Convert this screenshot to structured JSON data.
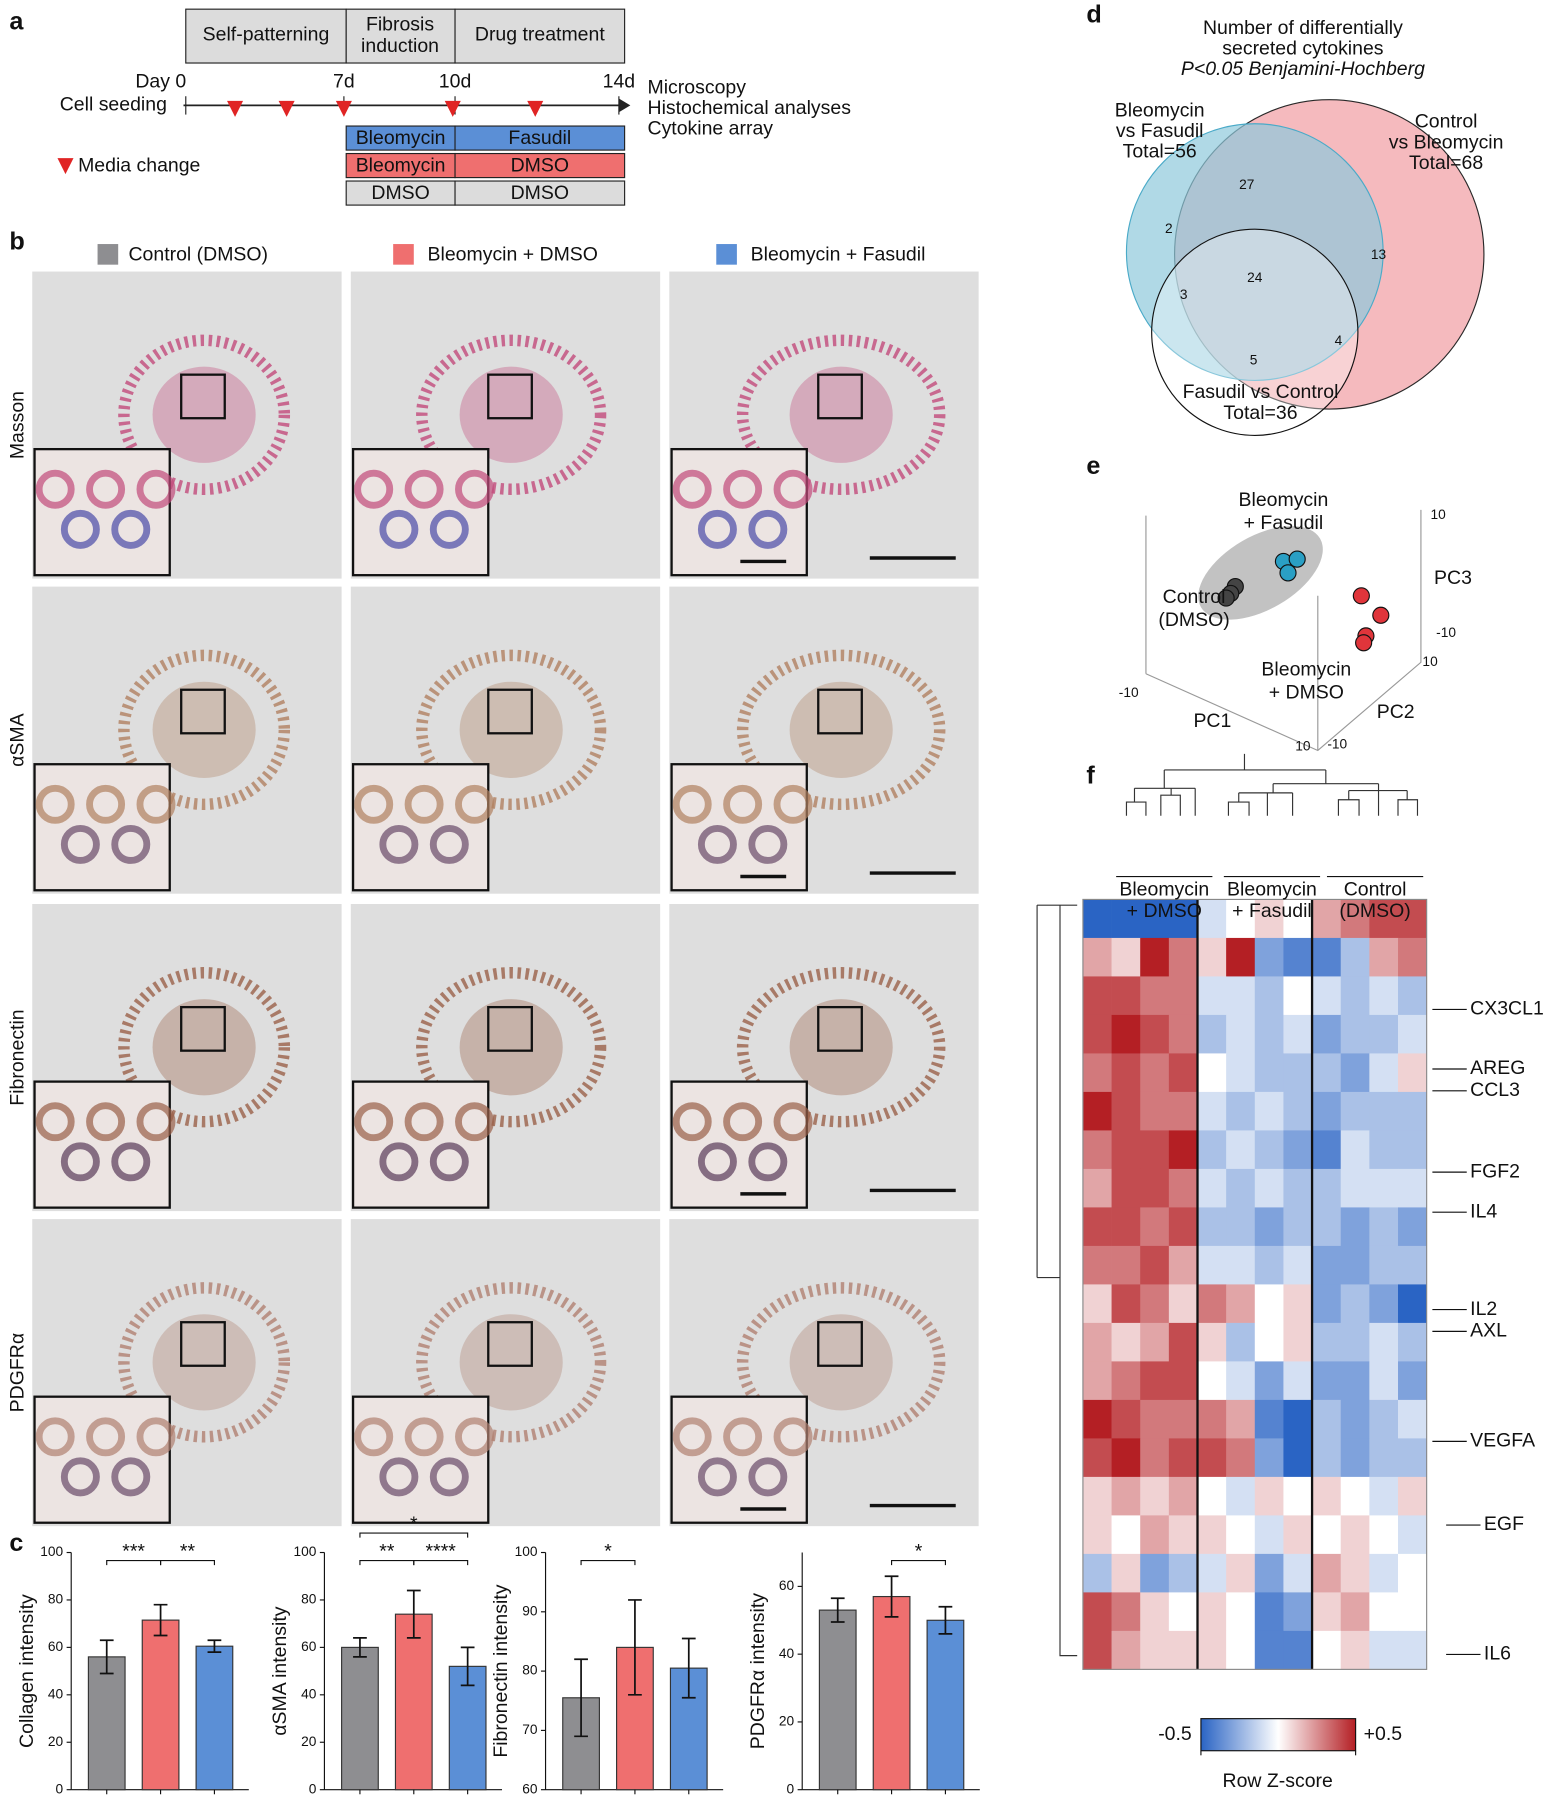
{
  "panels": [
    "a",
    "b",
    "c",
    "d",
    "e",
    "f"
  ],
  "panel_a": {
    "phases": [
      "Self-patterning",
      "Fibrosis",
      "induction",
      "Drug treatment"
    ],
    "day_labels": [
      "Day 0",
      "7d",
      "10d",
      "14d"
    ],
    "cell_seeding": "Cell seeding",
    "outputs": [
      "Microscopy",
      "Histochemical analyses",
      "Cytokine array"
    ],
    "legend": "Media change",
    "rows": [
      [
        "Bleomycin",
        "Fasudil"
      ],
      [
        "Bleomycin",
        "DMSO"
      ],
      [
        "DMSO",
        "DMSO"
      ]
    ]
  },
  "panel_b": {
    "groups": [
      {
        "name": "Control (DMSO)",
        "color": "#8e8e91"
      },
      {
        "name": "Bleomycin + DMSO",
        "color": "#ef6f6f"
      },
      {
        "name": "Bleomycin + Fasudil",
        "color": "#5b8fd6"
      }
    ],
    "stains": [
      "Masson",
      "αSMA",
      "Fibronectin",
      "PDGFRα"
    ]
  },
  "panel_d": {
    "title": [
      "Number of differentially",
      "secreted cytokines",
      "P<0.05 Benjamini-Hochberg"
    ],
    "sets": [
      {
        "lines": [
          "Bleomycin",
          "vs Fasudil"
        ],
        "total": "Total=56",
        "color": "#2a9fc4"
      },
      {
        "lines": [
          "Control",
          "vs Bleomycin"
        ],
        "total": "Total=68",
        "color": "#e0353b"
      },
      {
        "lines": [
          "Fasudil vs Control"
        ],
        "total": "Total=36",
        "color": "#000000"
      }
    ],
    "regions": [
      "27",
      "2",
      "13",
      "24",
      "3",
      "4",
      "5"
    ]
  },
  "panel_e": {
    "groups": [
      {
        "lines": [
          "Bleomycin",
          "+ Fasudil"
        ],
        "color": "#2a9fc4"
      },
      {
        "lines": [
          "Control",
          "(DMSO)"
        ],
        "color": "#222222"
      },
      {
        "lines": [
          "Bleomycin",
          "+ DMSO"
        ],
        "color": "#e0353b"
      }
    ],
    "axes": [
      "PC1",
      "PC2",
      "PC3"
    ],
    "ticks": [
      "10",
      "-10",
      "10",
      "-10",
      "-10",
      "10"
    ]
  },
  "chart_data": [
    {
      "type": "bar",
      "ylabel": "Collagen intensity",
      "categories": [
        null,
        null,
        null
      ],
      "values": [
        56,
        71.5,
        60.5
      ],
      "errors": [
        7,
        6.5,
        2.5
      ],
      "colors": [
        "#8e8e91",
        "#ef6f6f",
        "#5b8fd6"
      ],
      "ylim": [
        0,
        100
      ],
      "yticks": [
        0,
        20,
        40,
        60,
        80,
        100
      ],
      "significance": [
        {
          "label": "***",
          "from": 0,
          "to": 1
        },
        {
          "label": "**",
          "from": 1,
          "to": 2
        }
      ]
    },
    {
      "type": "bar",
      "ylabel": "αSMA intensity",
      "categories": [
        null,
        null,
        null
      ],
      "values": [
        60,
        74,
        52
      ],
      "errors": [
        4,
        10,
        8
      ],
      "colors": [
        "#8e8e91",
        "#ef6f6f",
        "#5b8fd6"
      ],
      "ylim": [
        0,
        100
      ],
      "yticks": [
        0,
        20,
        40,
        60,
        80,
        100
      ],
      "significance": [
        {
          "label": "**",
          "from": 0,
          "to": 1
        },
        {
          "label": "****",
          "from": 1,
          "to": 2
        },
        {
          "label": "*",
          "from": 0,
          "to": 2
        }
      ]
    },
    {
      "type": "bar",
      "ylabel": "Fibronectin intensity",
      "categories": [
        null,
        null,
        null
      ],
      "values": [
        75.5,
        84,
        80.5
      ],
      "errors": [
        6.5,
        8,
        5
      ],
      "colors": [
        "#8e8e91",
        "#ef6f6f",
        "#5b8fd6"
      ],
      "ylim": [
        60,
        100
      ],
      "yticks": [
        60,
        70,
        80,
        90,
        100
      ],
      "significance": [
        {
          "label": "*",
          "from": 0,
          "to": 1
        }
      ]
    },
    {
      "type": "bar",
      "ylabel": "PDGFRα intensity",
      "categories": [
        null,
        null,
        null
      ],
      "values": [
        53,
        57,
        50
      ],
      "errors": [
        3.5,
        6,
        4
      ],
      "colors": [
        "#8e8e91",
        "#ef6f6f",
        "#5b8fd6"
      ],
      "ylim": [
        0,
        70
      ],
      "yticks": [
        0,
        20,
        40,
        60
      ],
      "significance": [
        {
          "label": "*",
          "from": 1,
          "to": 2
        }
      ]
    },
    {
      "type": "heatmap",
      "column_groups": [
        [
          "Bleomycin",
          "+ DMSO"
        ],
        [
          "Bleomycin",
          "+ Fasudil"
        ],
        [
          "Control",
          "(DMSO)"
        ]
      ],
      "row_labels": [
        "CX3CL1",
        "AREG",
        "CCL3",
        "FGF2",
        "IL4",
        "IL2",
        "AXL",
        "VEGFA",
        "EGF",
        "IL6"
      ],
      "colorbar_label": "Row Z-score",
      "zticks": [
        -0.5,
        {
          "value": 0.5,
          "label": "+0.5"
        }
      ],
      "values": [
        [
          -0.5,
          -0.5,
          -0.5,
          -0.5,
          -0.1,
          0,
          0.1,
          0,
          0.2,
          0.3,
          0.4,
          0.4
        ],
        [
          0.2,
          0.1,
          0.5,
          0.3,
          0.1,
          0.5,
          -0.3,
          -0.4,
          -0.4,
          -0.2,
          0.2,
          0.3
        ],
        [
          0.4,
          0.4,
          0.3,
          0.3,
          -0.1,
          -0.1,
          -0.2,
          0,
          -0.1,
          -0.2,
          -0.1,
          -0.2
        ],
        [
          0.4,
          0.5,
          0.4,
          0.3,
          -0.2,
          -0.1,
          -0.2,
          -0.1,
          -0.3,
          -0.2,
          -0.2,
          -0.1
        ],
        [
          0.3,
          0.4,
          0.3,
          0.4,
          0,
          -0.1,
          -0.2,
          -0.2,
          -0.2,
          -0.3,
          -0.1,
          0.1
        ],
        [
          0.5,
          0.4,
          0.3,
          0.3,
          -0.1,
          -0.2,
          -0.1,
          -0.2,
          -0.3,
          -0.2,
          -0.2,
          -0.2
        ],
        [
          0.3,
          0.4,
          0.4,
          0.5,
          -0.2,
          -0.1,
          -0.2,
          -0.3,
          -0.4,
          -0.1,
          -0.2,
          -0.2
        ],
        [
          0.2,
          0.4,
          0.4,
          0.3,
          -0.1,
          -0.2,
          -0.1,
          -0.2,
          -0.2,
          -0.1,
          -0.1,
          -0.1
        ],
        [
          0.4,
          0.4,
          0.3,
          0.4,
          -0.2,
          -0.2,
          -0.3,
          -0.2,
          -0.2,
          -0.3,
          -0.2,
          -0.3
        ],
        [
          0.3,
          0.3,
          0.4,
          0.2,
          -0.1,
          -0.1,
          -0.2,
          -0.1,
          -0.3,
          -0.3,
          -0.2,
          -0.2
        ],
        [
          0.1,
          0.4,
          0.3,
          0.1,
          0.3,
          0.2,
          0,
          0.1,
          -0.3,
          -0.2,
          -0.3,
          -0.5
        ],
        [
          0.2,
          0.1,
          0.2,
          0.4,
          0.1,
          -0.2,
          0,
          0.1,
          -0.2,
          -0.2,
          -0.1,
          -0.2
        ],
        [
          0.2,
          0.3,
          0.4,
          0.4,
          0,
          -0.1,
          -0.3,
          -0.1,
          -0.3,
          -0.3,
          -0.1,
          -0.3
        ],
        [
          0.5,
          0.4,
          0.3,
          0.3,
          0.3,
          0.2,
          -0.4,
          -0.5,
          -0.2,
          -0.3,
          -0.2,
          -0.1
        ],
        [
          0.4,
          0.5,
          0.3,
          0.4,
          0.4,
          0.3,
          -0.3,
          -0.5,
          -0.2,
          -0.3,
          -0.2,
          -0.2
        ],
        [
          0.1,
          0.2,
          0.1,
          0.2,
          0,
          -0.1,
          0.1,
          0,
          0.1,
          0,
          -0.1,
          0.1
        ],
        [
          0.1,
          0,
          0.2,
          0.1,
          0.1,
          0,
          -0.1,
          0.1,
          0,
          0.1,
          0,
          -0.1
        ],
        [
          -0.2,
          0.1,
          -0.3,
          -0.2,
          -0.1,
          0.1,
          -0.3,
          -0.1,
          0.2,
          0.1,
          -0.1,
          0
        ],
        [
          0.4,
          0.3,
          0.1,
          0,
          0.1,
          0,
          -0.4,
          -0.3,
          0.1,
          0.2,
          0,
          0
        ],
        [
          0.4,
          0.2,
          0.1,
          0.1,
          0.1,
          0,
          -0.4,
          -0.4,
          0,
          0.1,
          -0.1,
          -0.1
        ]
      ]
    }
  ]
}
